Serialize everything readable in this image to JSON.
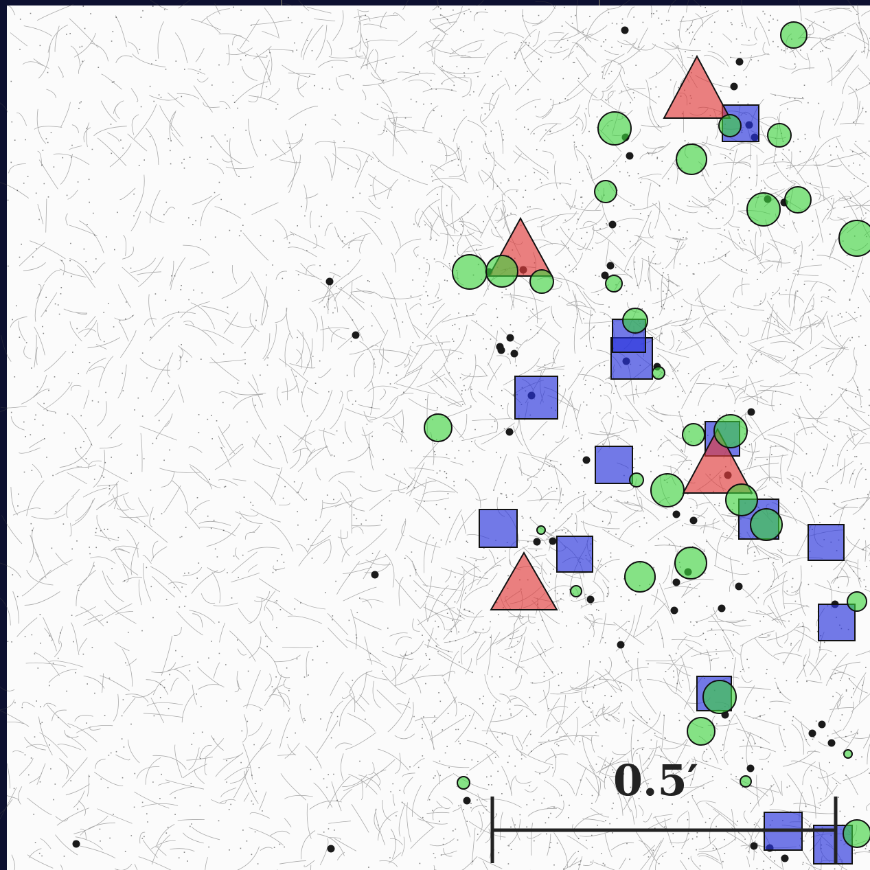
{
  "scale_bar": {
    "label": "0.5′"
  }
}
